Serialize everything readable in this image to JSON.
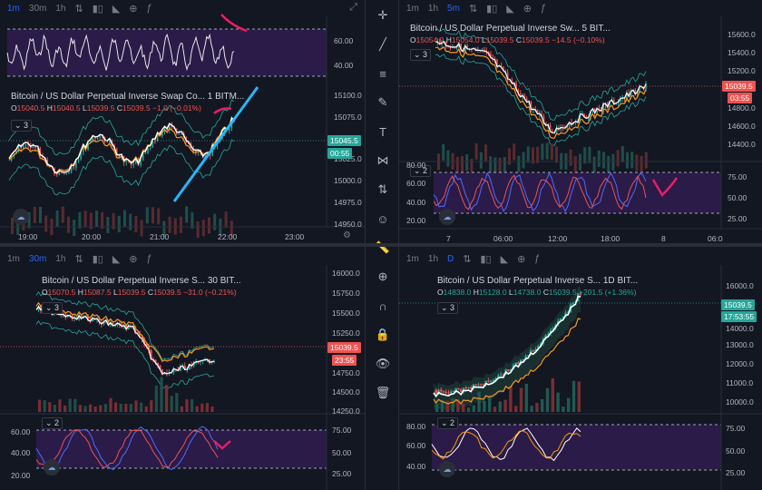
{
  "colors": {
    "background": "#131722",
    "panel_border": "#2a2e39",
    "up": "#26a69a",
    "down": "#ef5350",
    "rsi_fill": "#2a1b48",
    "ma_orange": "#f59b1e",
    "ma_white": "#ffffff",
    "accent_blue": "#2962ff",
    "annotation_pink": "#e91e63",
    "annotation_cyan": "#29b6f6"
  },
  "panes": [
    {
      "id": "tl",
      "toolbar": {
        "timeframes": [
          "1m",
          "30m",
          "1h"
        ],
        "active": "1m"
      },
      "legend": {
        "symbol": "Bitcoin / US Dollar Perpetual Inverse Swap Co...",
        "interval": "1",
        "exchange": "BITM...",
        "O": "15040.5",
        "H": "15040.5",
        "L": "15039.5",
        "C": "15039.5",
        "change": "−1.0 (−0.01%)"
      },
      "indicator_count": "3",
      "osc_axis": [
        "60.00",
        "40.00"
      ],
      "price_axis": [
        "15100.0",
        "15075.0",
        "15025.0",
        "15000.0",
        "14975.0",
        "14950.0"
      ],
      "price_box": "15045.5",
      "countdown": "00:55",
      "time_axis": [
        "19:00",
        "20:00",
        "21:00",
        "22:00",
        "23:00"
      ]
    },
    {
      "id": "tr",
      "toolbar": {
        "timeframes": [
          "1m",
          "1h",
          "5m"
        ],
        "active": "5m"
      },
      "legend": {
        "symbol": "Bitcoin / US Dollar Perpetual Inverse Sw...",
        "interval": "5",
        "exchange": "BIT...",
        "O": "15054.0",
        "H": "15054.0",
        "L": "15039.5",
        "C": "15039.5",
        "change": "−14.5 (−0.10%)"
      },
      "indicator_count": "3",
      "price_axis": [
        "15600.0",
        "15400.0",
        "15200.0",
        "14800.0",
        "14600.0",
        "14400.0"
      ],
      "price_box": "15039.5",
      "countdown": "03:55",
      "osc_axis": [
        "80.00",
        "60.00",
        "40.00",
        "20.00"
      ],
      "osc_axis_right": [
        "75.00",
        "50.00",
        "25.00"
      ],
      "osc_count": "2",
      "time_axis": [
        "7",
        "06:00",
        "12:00",
        "18:00",
        "8",
        "06:0"
      ]
    },
    {
      "id": "bl",
      "toolbar": {
        "timeframes": [
          "1m",
          "30m",
          "1h"
        ],
        "active": "30m"
      },
      "legend": {
        "symbol": "Bitcoin / US Dollar Perpetual Inverse S...",
        "interval": "30",
        "exchange": "BIT...",
        "O": "15070.5",
        "H": "15087.5",
        "L": "15039.5",
        "C": "15039.5",
        "change": "−31.0 (−0.21%)"
      },
      "indicator_count": "3",
      "price_axis": [
        "16000.0",
        "15750.0",
        "15500.0",
        "15250.0",
        "14750.0",
        "14500.0",
        "14250.0"
      ],
      "price_box": "15039.5",
      "countdown": "23:55",
      "osc_axis": [
        "60.00",
        "40.00",
        "20.00"
      ],
      "osc_axis_right": [
        "75.00",
        "50.00",
        "25.00"
      ],
      "osc_count": "2"
    },
    {
      "id": "br",
      "toolbar": {
        "timeframes": [
          "1m",
          "1h",
          "D"
        ],
        "active": "D"
      },
      "legend": {
        "symbol": "Bitcoin / US Dollar Perpetual Inverse S...",
        "interval": "1D",
        "exchange": "BIT...",
        "O": "14838.0",
        "H": "15128.0",
        "L": "14738.0",
        "C": "15039.5",
        "change": "+201.5 (+1.36%)"
      },
      "indicator_count": "3",
      "price_axis": [
        "16000.0",
        "14000.0",
        "13000.0",
        "12000.0",
        "11000.0",
        "10000.0"
      ],
      "price_box": "15039.5",
      "countdown": "17:53:55",
      "osc_axis": [
        "80.00",
        "60.00",
        "40.00"
      ],
      "osc_axis_right": [
        "75.00",
        "50.00",
        "25.00"
      ],
      "osc_count": "2"
    }
  ],
  "drawing_tools": [
    "crosshair-icon",
    "trendline-icon",
    "fib-icon",
    "brush-icon",
    "text-icon",
    "pattern-icon",
    "prediction-icon",
    "emoji-icon",
    "ruler-icon",
    "zoom-icon",
    "magnet-icon",
    "lock-icon",
    "eye-icon",
    "trash-icon"
  ],
  "tool_glyphs": [
    "✛",
    "╱",
    "≡",
    "✎",
    "T",
    "⋈",
    "⇅",
    "☺",
    "📏",
    "⊕",
    "∩",
    "🔒",
    "👁",
    "🗑"
  ]
}
